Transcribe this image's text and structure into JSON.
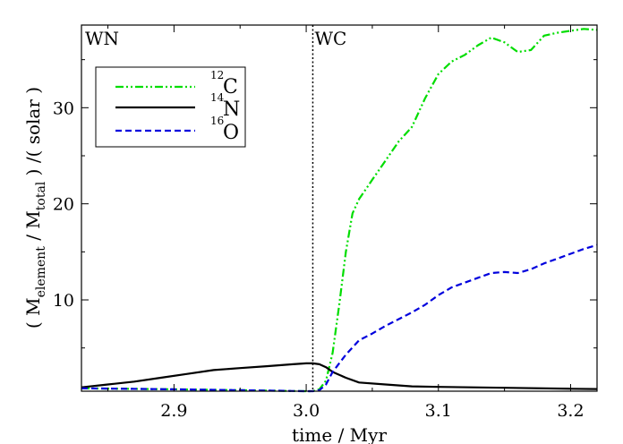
{
  "chart_data": {
    "type": "line",
    "xlabel": "time / Myr",
    "ylabel": {
      "open": "( M",
      "sub1": "element",
      "mid": " / M",
      "sub2": "total",
      "close": " ) /( solar )"
    },
    "xlim": [
      2.83,
      3.22
    ],
    "ylim": [
      0.5,
      38.6
    ],
    "xticks": [
      2.9,
      3.0,
      3.1,
      3.2
    ],
    "xtick_labels": [
      "2.9",
      "3.0",
      "3.1",
      "3.2"
    ],
    "yticks": [
      10,
      20,
      30
    ],
    "ytick_labels": [
      "10",
      "20",
      "30"
    ],
    "grid": false,
    "legend_position": "top-left",
    "phase_boundary": 3.005,
    "phase_labels": [
      "WN",
      "WC"
    ],
    "series": [
      {
        "name": "C",
        "isotope": "12",
        "color": "#00dd00",
        "style": "dash-dot",
        "x": [
          2.83,
          2.9,
          2.95,
          3.0,
          3.005,
          3.01,
          3.015,
          3.02,
          3.025,
          3.03,
          3.035,
          3.04,
          3.05,
          3.06,
          3.07,
          3.08,
          3.09,
          3.1,
          3.11,
          3.12,
          3.13,
          3.14,
          3.15,
          3.16,
          3.17,
          3.18,
          3.19,
          3.2,
          3.21,
          3.22
        ],
        "y": [
          0.8,
          0.7,
          0.6,
          0.5,
          0.5,
          0.7,
          1.6,
          4.5,
          9.5,
          15.0,
          19.0,
          20.5,
          22.5,
          24.5,
          26.5,
          28.0,
          31.0,
          33.5,
          34.8,
          35.5,
          36.5,
          37.3,
          36.8,
          35.8,
          36.0,
          37.5,
          37.8,
          38.0,
          38.2,
          38.1
        ]
      },
      {
        "name": "N",
        "isotope": "14",
        "color": "#000000",
        "style": "solid",
        "x": [
          2.83,
          2.85,
          2.87,
          2.89,
          2.91,
          2.93,
          2.95,
          2.97,
          2.99,
          3.0,
          3.005,
          3.01,
          3.015,
          3.02,
          3.03,
          3.04,
          3.06,
          3.08,
          3.1,
          3.15,
          3.2,
          3.22
        ],
        "y": [
          0.9,
          1.2,
          1.5,
          1.9,
          2.3,
          2.7,
          2.9,
          3.1,
          3.3,
          3.4,
          3.4,
          3.3,
          3.0,
          2.5,
          1.9,
          1.4,
          1.2,
          1.0,
          0.95,
          0.85,
          0.75,
          0.72
        ]
      },
      {
        "name": "O",
        "isotope": "16",
        "color": "#0000dd",
        "style": "dashed",
        "x": [
          2.83,
          2.9,
          2.95,
          3.0,
          3.005,
          3.01,
          3.015,
          3.02,
          3.03,
          3.04,
          3.05,
          3.06,
          3.07,
          3.08,
          3.09,
          3.1,
          3.11,
          3.12,
          3.13,
          3.14,
          3.15,
          3.16,
          3.17,
          3.18,
          3.19,
          3.2,
          3.21,
          3.22
        ],
        "y": [
          0.8,
          0.7,
          0.6,
          0.5,
          0.5,
          0.6,
          1.2,
          2.5,
          4.3,
          5.8,
          6.5,
          7.3,
          8.0,
          8.7,
          9.5,
          10.5,
          11.3,
          11.8,
          12.3,
          12.8,
          12.9,
          12.8,
          13.2,
          13.8,
          14.3,
          14.8,
          15.3,
          15.7
        ]
      }
    ]
  }
}
